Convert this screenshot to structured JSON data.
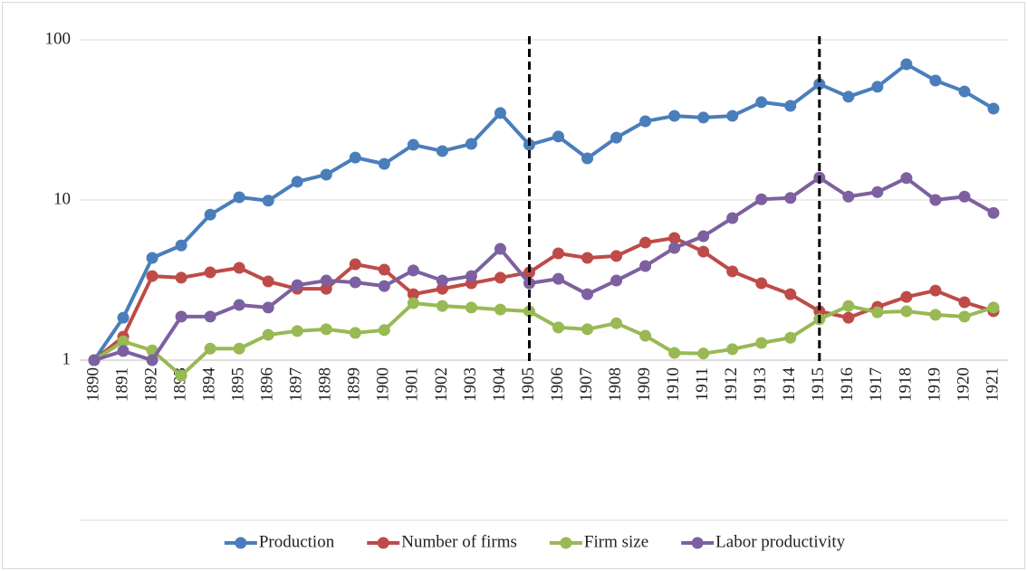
{
  "chart_data": {
    "type": "line",
    "categories": [
      "1890",
      "1891",
      "1892",
      "1893",
      "1894",
      "1895",
      "1896",
      "1897",
      "1898",
      "1899",
      "1900",
      "1901",
      "1902",
      "1903",
      "1904",
      "1905",
      "1906",
      "1907",
      "1908",
      "1909",
      "1910",
      "1911",
      "1912",
      "1913",
      "1914",
      "1915",
      "1916",
      "1917",
      "1918",
      "1919",
      "1920",
      "1921"
    ],
    "series": [
      {
        "name": "Production",
        "color": "#4a7ebb",
        "values": [
          1,
          1.84,
          4.35,
          5.2,
          8.1,
          10.4,
          9.9,
          13.0,
          14.4,
          18.4,
          16.8,
          22.1,
          20.2,
          22.4,
          34.9,
          22.1,
          24.9,
          18.2,
          24.5,
          31.0,
          33.5,
          32.7,
          33.5,
          40.8,
          38.7,
          52.9,
          44.1,
          50.9,
          70.4,
          55.7,
          47.6,
          37.2
        ]
      },
      {
        "name": "Number of firms",
        "color": "#be4b48",
        "values": [
          1,
          1.4,
          3.35,
          3.27,
          3.53,
          3.77,
          3.1,
          2.79,
          2.79,
          3.97,
          3.67,
          2.58,
          2.79,
          3.02,
          3.27,
          3.53,
          4.64,
          4.35,
          4.47,
          5.42,
          5.79,
          4.76,
          3.58,
          3.02,
          2.58,
          2.02,
          1.84,
          2.15,
          2.48,
          2.72,
          2.3,
          2.02
        ]
      },
      {
        "name": "Firm size",
        "color": "#98b954",
        "values": [
          1,
          1.31,
          1.15,
          0.8,
          1.18,
          1.18,
          1.44,
          1.52,
          1.56,
          1.48,
          1.54,
          2.27,
          2.18,
          2.13,
          2.07,
          2.02,
          1.6,
          1.56,
          1.7,
          1.42,
          1.11,
          1.1,
          1.17,
          1.28,
          1.38,
          1.8,
          2.18,
          1.99,
          2.02,
          1.92,
          1.87,
          2.13
        ]
      },
      {
        "name": "Labor productivity",
        "color": "#7d60a0",
        "values": [
          1,
          1.14,
          1,
          1.87,
          1.87,
          2.21,
          2.13,
          2.94,
          3.14,
          3.06,
          2.9,
          3.63,
          3.14,
          3.35,
          4.95,
          3.02,
          3.22,
          2.58,
          3.14,
          3.87,
          5.02,
          5.94,
          7.71,
          10.1,
          10.3,
          13.8,
          10.5,
          11.2,
          13.7,
          10,
          10.5,
          8.3
        ]
      }
    ],
    "ylim": [
      0.1,
      100
    ],
    "yticks": [
      1,
      10,
      100
    ],
    "log_y": true,
    "grid": true,
    "xaxis_crosses": 1,
    "vlines": [
      "1905",
      "1915"
    ],
    "legend": "bottom"
  }
}
